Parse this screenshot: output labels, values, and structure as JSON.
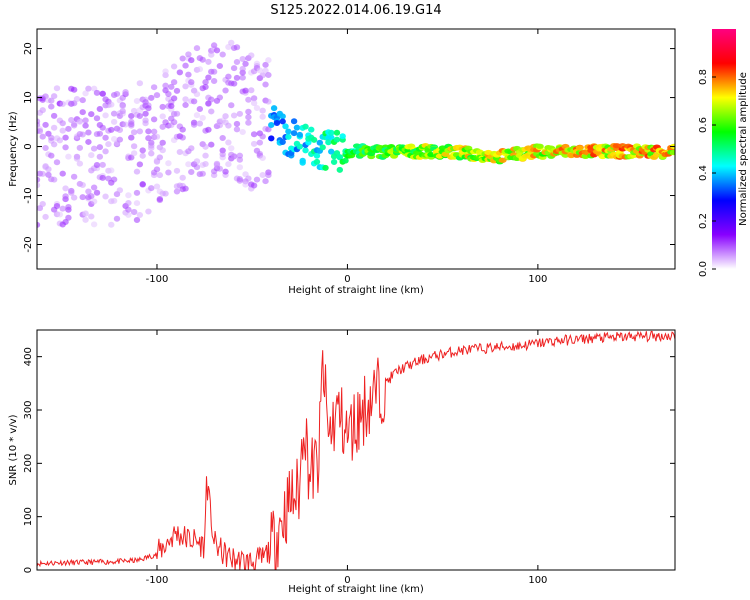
{
  "title": "S125.2022.014.06.19.G14",
  "colors": {
    "snr_line": "#ee2222",
    "colormap": [
      "#ffffff",
      "#8800ff",
      "#0000ff",
      "#00ffff",
      "#00ff00",
      "#ffff00",
      "#ff0000",
      "#ff0080"
    ]
  },
  "chart_data": [
    {
      "type": "heatmap",
      "title": "",
      "xlabel": "Height of straight line (km)",
      "ylabel": "Frequency (Hz)",
      "xlim": [
        -163,
        172
      ],
      "ylim": [
        -25,
        24
      ],
      "xticks": [
        -100,
        0,
        100
      ],
      "yticks": [
        -20,
        -10,
        0,
        10,
        20
      ],
      "grid": false,
      "colorbar": {
        "label": "Normalized spectral amplitude",
        "range": [
          0,
          1
        ],
        "ticks": [
          0.0,
          0.2,
          0.4,
          0.6,
          0.8
        ]
      },
      "ridge": {
        "description_points_x": [
          -163,
          -140,
          -120,
          -100,
          -85,
          -70,
          -60,
          -50,
          -40,
          -30,
          -20,
          -10,
          0,
          20,
          50,
          80,
          100,
          130,
          172
        ],
        "frequency_y": [
          -2,
          -2,
          -2,
          0,
          5,
          8,
          8,
          5,
          5,
          2,
          0,
          -1,
          -1,
          -1,
          -1,
          -2,
          -1,
          -1,
          -1
        ],
        "amplitude": [
          0.08,
          0.1,
          0.12,
          0.15,
          0.2,
          0.25,
          0.3,
          0.35,
          0.4,
          0.45,
          0.5,
          0.55,
          0.6,
          0.7,
          0.75,
          0.8,
          0.8,
          0.85,
          0.85
        ]
      }
    },
    {
      "type": "line",
      "title": "",
      "xlabel": "Height of straight line (km)",
      "ylabel": "SNR (10 * v/v)",
      "xlim": [
        -163,
        172
      ],
      "ylim": [
        0,
        450
      ],
      "xticks": [
        -100,
        0,
        100
      ],
      "yticks": [
        0,
        100,
        200,
        300,
        400
      ],
      "grid": false,
      "series": [
        {
          "x": [
            -163,
            -150,
            -140,
            -130,
            -120,
            -110,
            -100,
            -95,
            -90,
            -85,
            -80,
            -75,
            -74,
            -70,
            -65,
            -60,
            -55,
            -50,
            -45,
            -40,
            -35,
            -30,
            -25,
            -23,
            -20,
            -15,
            -13,
            -10,
            -5,
            0,
            5,
            10,
            15,
            20,
            25,
            30,
            40,
            50,
            60,
            70,
            80,
            90,
            100,
            110,
            120,
            130,
            140,
            150,
            160,
            172
          ],
          "y": [
            12,
            14,
            14,
            15,
            16,
            18,
            30,
            50,
            70,
            60,
            55,
            45,
            170,
            50,
            30,
            20,
            15,
            15,
            20,
            40,
            90,
            130,
            150,
            300,
            180,
            200,
            390,
            250,
            300,
            250,
            280,
            310,
            330,
            350,
            370,
            380,
            395,
            405,
            412,
            415,
            418,
            420,
            425,
            430,
            432,
            435,
            436,
            438,
            438,
            440
          ]
        }
      ]
    }
  ]
}
